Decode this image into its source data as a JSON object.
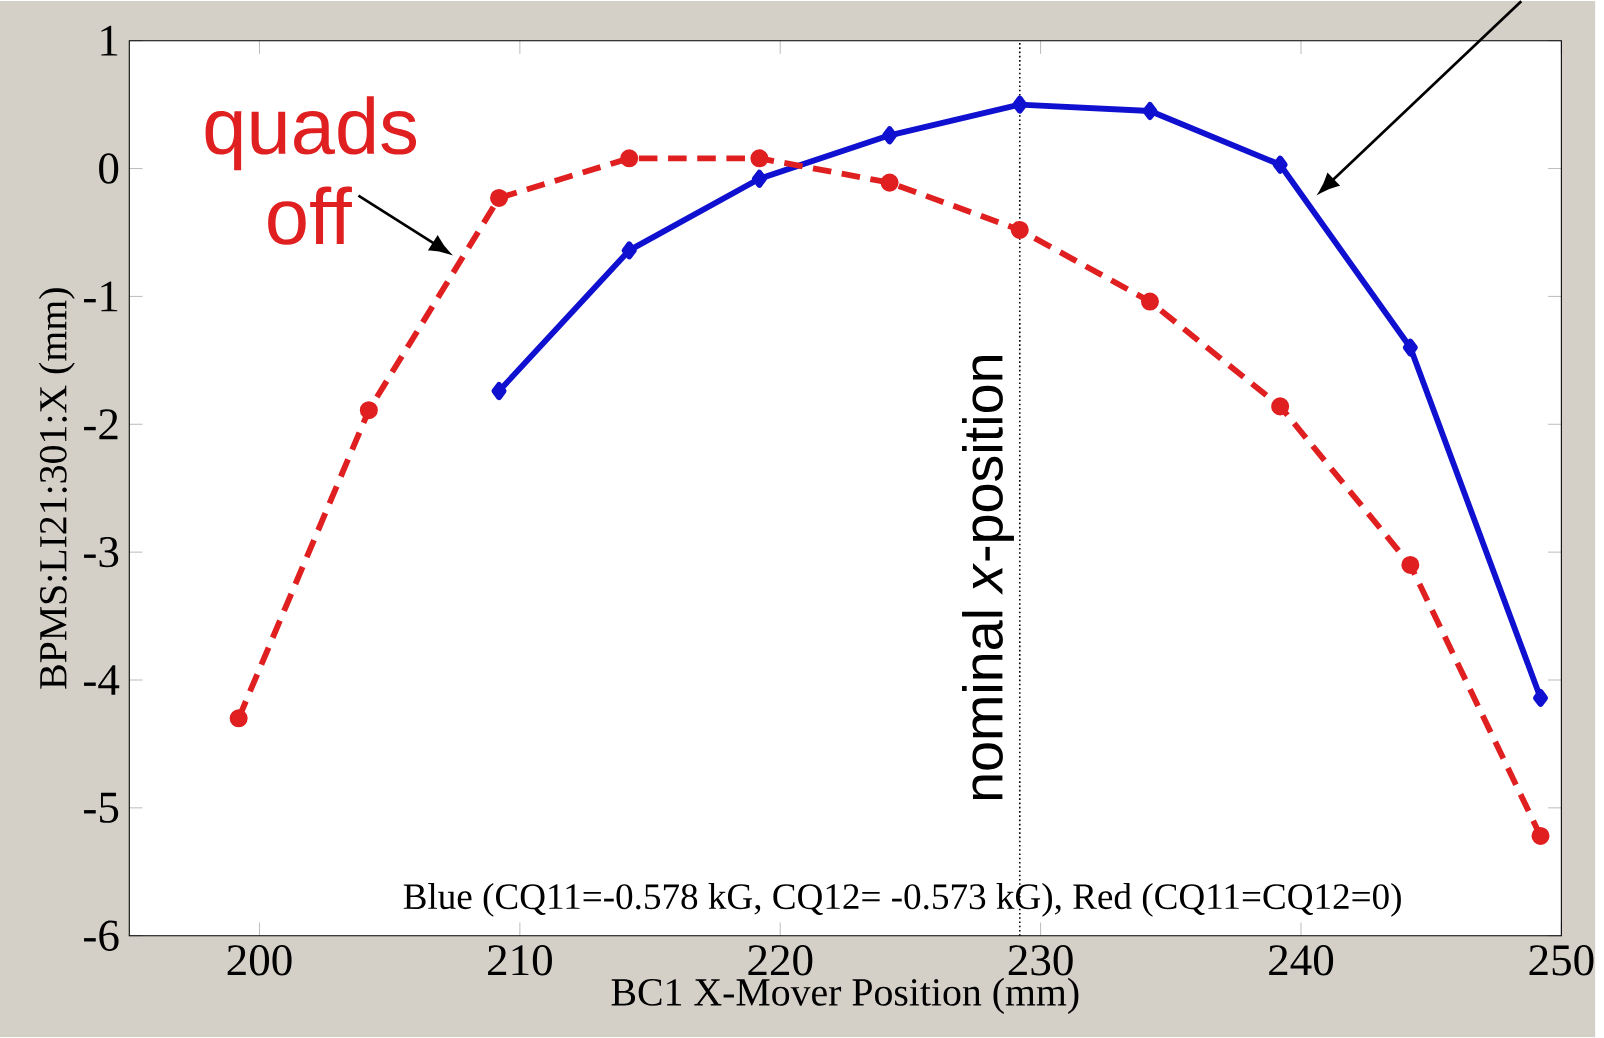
{
  "chart_data": {
    "type": "line",
    "xlabel": "BC1 X-Mover Position (mm)",
    "ylabel": "BPMS:LI21:301:X (mm)",
    "x": [
      199.2,
      204.2,
      209.2,
      214.2,
      219.2,
      224.2,
      229.2,
      234.2,
      239.2,
      244.2,
      249.2
    ],
    "series": [
      {
        "color": "#1010d0",
        "marker": "diamond",
        "line_style": "solid",
        "values": [
          null,
          null,
          -1.74,
          -0.64,
          -0.08,
          0.26,
          0.5,
          0.45,
          0.03,
          -1.4,
          -4.14
        ]
      },
      {
        "color": "#e02020",
        "marker": "circle",
        "line_style": "dashed",
        "values": [
          -4.3,
          -1.89,
          -0.23,
          0.08,
          0.08,
          -0.11,
          -0.48,
          -1.04,
          -1.86,
          -3.1,
          -5.22
        ]
      }
    ],
    "xlim": [
      195,
      250
    ],
    "ylim": [
      -6,
      1
    ],
    "xticks": [
      200,
      210,
      220,
      230,
      240,
      250
    ],
    "yticks": [
      -6,
      -5,
      -4,
      -3,
      -2,
      -1,
      0,
      1
    ],
    "ref_lines": [
      {
        "axis": "x",
        "value": 229.2,
        "label": "nominal *x*-position",
        "color": "#000000",
        "line_style": "dotted"
      }
    ],
    "annotations": [
      "quads off",
      "Blue (CQ11=-0.578 kG, CQ12= -0.573 kG),  Red (CQ11=CQ12=0)"
    ],
    "grid": false
  }
}
